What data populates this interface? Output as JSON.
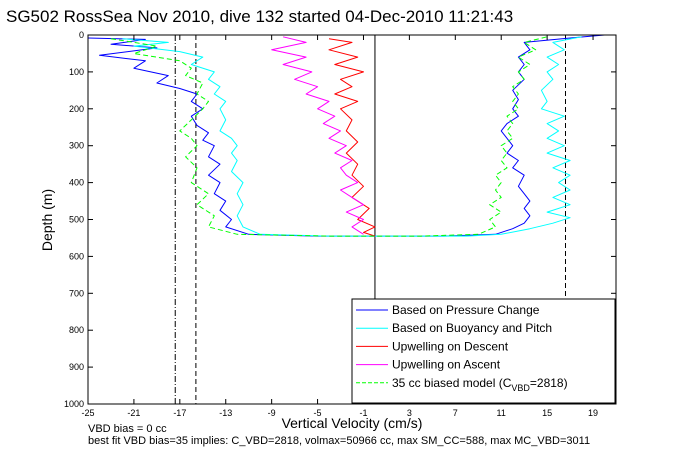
{
  "title": "SG502 RossSea Nov 2010, dive 132 started 04-Dec-2010 11:21:43",
  "footer": {
    "line1": "VBD bias = 0 cc",
    "line2": "best fit VBD bias=35 implies: C_VBD=2818, volmax=50966 cc, max SM_CC=588, max MC_VBD=3011"
  },
  "chart_data": {
    "type": "line",
    "xlabel": "Vertical Velocity (cm/s)",
    "ylabel": "Depth (m)",
    "xlim": [
      -25,
      21
    ],
    "ylim": [
      1000,
      0
    ],
    "y_reversed": true,
    "xticks": [
      -25,
      -21,
      -17,
      -13,
      -9,
      -5,
      -1,
      3,
      7,
      11,
      15,
      19
    ],
    "yticks": [
      0,
      100,
      200,
      300,
      400,
      500,
      600,
      700,
      800,
      900,
      1000
    ],
    "grid": false,
    "legend_position": "bottom-right",
    "reference_lines": [
      {
        "style": "dash-dot",
        "x": -17.4
      },
      {
        "style": "dashed",
        "x": -15.6
      },
      {
        "style": "solid",
        "x": 0
      },
      {
        "style": "dashed",
        "x": 16.6
      }
    ],
    "series": [
      {
        "name": "Based on Pressure Change",
        "color": "#0000ff",
        "style": "solid",
        "points": [
          [
            -25,
            8
          ],
          [
            -20,
            12
          ],
          [
            -23,
            25
          ],
          [
            -19,
            35
          ],
          [
            -24,
            55
          ],
          [
            -20,
            70
          ],
          [
            -21,
            90
          ],
          [
            -18,
            110
          ],
          [
            -19,
            130
          ],
          [
            -17,
            145
          ],
          [
            -15.5,
            160
          ],
          [
            -16,
            180
          ],
          [
            -15,
            200
          ],
          [
            -16,
            220
          ],
          [
            -15.5,
            245
          ],
          [
            -14.5,
            265
          ],
          [
            -15,
            285
          ],
          [
            -14,
            300
          ],
          [
            -14.5,
            330
          ],
          [
            -13.5,
            350
          ],
          [
            -14.5,
            380
          ],
          [
            -13.5,
            400
          ],
          [
            -14,
            430
          ],
          [
            -13,
            450
          ],
          [
            -13.5,
            475
          ],
          [
            -12.5,
            500
          ],
          [
            -13,
            520
          ],
          [
            -11,
            540
          ],
          [
            -5,
            545
          ],
          [
            0,
            545
          ],
          [
            6,
            545
          ],
          [
            10.5,
            540
          ],
          [
            12,
            525
          ],
          [
            13,
            510
          ],
          [
            13.5,
            490
          ],
          [
            13,
            470
          ],
          [
            13.5,
            450
          ],
          [
            13,
            430
          ],
          [
            12.5,
            410
          ],
          [
            13,
            380
          ],
          [
            12,
            360
          ],
          [
            12.5,
            340
          ],
          [
            11.5,
            320
          ],
          [
            12,
            300
          ],
          [
            11.5,
            280
          ],
          [
            11,
            260
          ],
          [
            11.5,
            240
          ],
          [
            12.5,
            220
          ],
          [
            12,
            200
          ],
          [
            12.5,
            175
          ],
          [
            12,
            150
          ],
          [
            13,
            120
          ],
          [
            12.5,
            100
          ],
          [
            13,
            80
          ],
          [
            12.5,
            60
          ],
          [
            13.5,
            40
          ],
          [
            13,
            20
          ],
          [
            17,
            8
          ],
          [
            20,
            0
          ]
        ]
      },
      {
        "name": "Based on Buoyancy and Pitch",
        "color": "#00ffff",
        "style": "solid",
        "points": [
          [
            -22,
            10
          ],
          [
            -18,
            20
          ],
          [
            -21,
            30
          ],
          [
            -17,
            45
          ],
          [
            -15,
            60
          ],
          [
            -16,
            80
          ],
          [
            -14,
            100
          ],
          [
            -14.5,
            120
          ],
          [
            -13.5,
            140
          ],
          [
            -14,
            160
          ],
          [
            -13,
            180
          ],
          [
            -13.5,
            200
          ],
          [
            -13,
            230
          ],
          [
            -13.5,
            260
          ],
          [
            -12.5,
            280
          ],
          [
            -12,
            300
          ],
          [
            -12.5,
            320
          ],
          [
            -12,
            340
          ],
          [
            -12.5,
            370
          ],
          [
            -11.5,
            400
          ],
          [
            -12,
            430
          ],
          [
            -11.5,
            460
          ],
          [
            -12,
            490
          ],
          [
            -11.5,
            520
          ],
          [
            -10,
            540
          ],
          [
            -4,
            545
          ],
          [
            2,
            545
          ],
          [
            8,
            545
          ],
          [
            11,
            540
          ],
          [
            13.5,
            525
          ],
          [
            15.5,
            510
          ],
          [
            17,
            495
          ],
          [
            15,
            480
          ],
          [
            17,
            460
          ],
          [
            15.5,
            440
          ],
          [
            17,
            420
          ],
          [
            16,
            400
          ],
          [
            17,
            380
          ],
          [
            15.5,
            360
          ],
          [
            17,
            340
          ],
          [
            15,
            320
          ],
          [
            16.5,
            300
          ],
          [
            15,
            280
          ],
          [
            16,
            260
          ],
          [
            15,
            240
          ],
          [
            16.5,
            220
          ],
          [
            14.5,
            200
          ],
          [
            15,
            180
          ],
          [
            14.5,
            150
          ],
          [
            15.5,
            120
          ],
          [
            15,
            100
          ],
          [
            16,
            80
          ],
          [
            15,
            60
          ],
          [
            16.5,
            40
          ],
          [
            15.5,
            20
          ],
          [
            18,
            5
          ]
        ]
      },
      {
        "name": "Upwelling on Descent",
        "color": "#ff0000",
        "style": "solid",
        "points": [
          [
            -4,
            10
          ],
          [
            -2,
            20
          ],
          [
            -4,
            40
          ],
          [
            -1.5,
            60
          ],
          [
            -3.5,
            80
          ],
          [
            -1,
            100
          ],
          [
            -3,
            120
          ],
          [
            -2,
            140
          ],
          [
            -3.5,
            160
          ],
          [
            -1.5,
            180
          ],
          [
            -3,
            200
          ],
          [
            -2,
            230
          ],
          [
            -2.5,
            260
          ],
          [
            -1.5,
            290
          ],
          [
            -2.5,
            320
          ],
          [
            -1.5,
            350
          ],
          [
            -2,
            380
          ],
          [
            -1,
            410
          ],
          [
            -2,
            440
          ],
          [
            -0.5,
            470
          ],
          [
            -1.5,
            500
          ],
          [
            0,
            520
          ],
          [
            -1,
            535
          ],
          [
            0,
            545
          ]
        ]
      },
      {
        "name": "Upwelling on Ascent",
        "color": "#ff00ff",
        "style": "solid",
        "points": [
          [
            -1,
            540
          ],
          [
            -2,
            520
          ],
          [
            -1,
            500
          ],
          [
            -2.5,
            480
          ],
          [
            -1,
            460
          ],
          [
            -2,
            440
          ],
          [
            -3,
            420
          ],
          [
            -1.5,
            400
          ],
          [
            -2.5,
            380
          ],
          [
            -3,
            360
          ],
          [
            -2,
            340
          ],
          [
            -3.5,
            320
          ],
          [
            -2.5,
            300
          ],
          [
            -4,
            280
          ],
          [
            -3,
            260
          ],
          [
            -4.5,
            240
          ],
          [
            -3.5,
            220
          ],
          [
            -5,
            200
          ],
          [
            -4,
            180
          ],
          [
            -6,
            160
          ],
          [
            -5,
            140
          ],
          [
            -7,
            120
          ],
          [
            -5.5,
            100
          ],
          [
            -8,
            80
          ],
          [
            -6,
            60
          ],
          [
            -9,
            40
          ],
          [
            -6,
            20
          ],
          [
            -8,
            5
          ]
        ]
      },
      {
        "name": "35 cc biased model (C_VBD=2818)",
        "color": "#00ff00",
        "style": "dashed",
        "points": [
          [
            -23,
            10
          ],
          [
            -19,
            30
          ],
          [
            -21,
            50
          ],
          [
            -17,
            70
          ],
          [
            -16,
            90
          ],
          [
            -16.5,
            110
          ],
          [
            -15,
            130
          ],
          [
            -15.5,
            160
          ],
          [
            -14.5,
            180
          ],
          [
            -15,
            200
          ],
          [
            -16,
            230
          ],
          [
            -17,
            260
          ],
          [
            -16,
            280
          ],
          [
            -15.5,
            300
          ],
          [
            -16.5,
            330
          ],
          [
            -15.5,
            360
          ],
          [
            -16,
            400
          ],
          [
            -14.5,
            430
          ],
          [
            -15.5,
            460
          ],
          [
            -14,
            490
          ],
          [
            -14.5,
            520
          ],
          [
            -12,
            540
          ],
          [
            -4,
            545
          ],
          [
            4,
            545
          ],
          [
            9,
            540
          ],
          [
            10.5,
            520
          ],
          [
            10,
            500
          ],
          [
            11,
            480
          ],
          [
            10,
            460
          ],
          [
            11,
            440
          ],
          [
            10.5,
            420
          ],
          [
            11,
            400
          ],
          [
            10.5,
            380
          ],
          [
            11.5,
            360
          ],
          [
            11,
            340
          ],
          [
            11.5,
            320
          ],
          [
            11,
            300
          ],
          [
            12,
            280
          ],
          [
            11.5,
            260
          ],
          [
            12,
            240
          ],
          [
            11.5,
            220
          ],
          [
            12.5,
            200
          ],
          [
            12,
            180
          ],
          [
            12.5,
            160
          ],
          [
            12,
            140
          ],
          [
            13,
            120
          ],
          [
            12.5,
            100
          ],
          [
            13.5,
            80
          ],
          [
            12.5,
            60
          ],
          [
            14,
            40
          ],
          [
            13,
            20
          ],
          [
            15,
            5
          ]
        ]
      }
    ]
  },
  "legend": {
    "items": [
      {
        "label": "Based on Pressure Change",
        "color": "#0000ff",
        "style": "solid"
      },
      {
        "label": "Based on Buoyancy and Pitch",
        "color": "#00ffff",
        "style": "solid"
      },
      {
        "label": "Upwelling on Descent",
        "color": "#ff0000",
        "style": "solid"
      },
      {
        "label": "Upwelling on Ascent",
        "color": "#ff00ff",
        "style": "solid"
      },
      {
        "label_prefix": "35 cc biased model (C",
        "label_sub": "VBD",
        "label_suffix": "=2818)",
        "color": "#00ff00",
        "style": "dashed"
      }
    ]
  }
}
